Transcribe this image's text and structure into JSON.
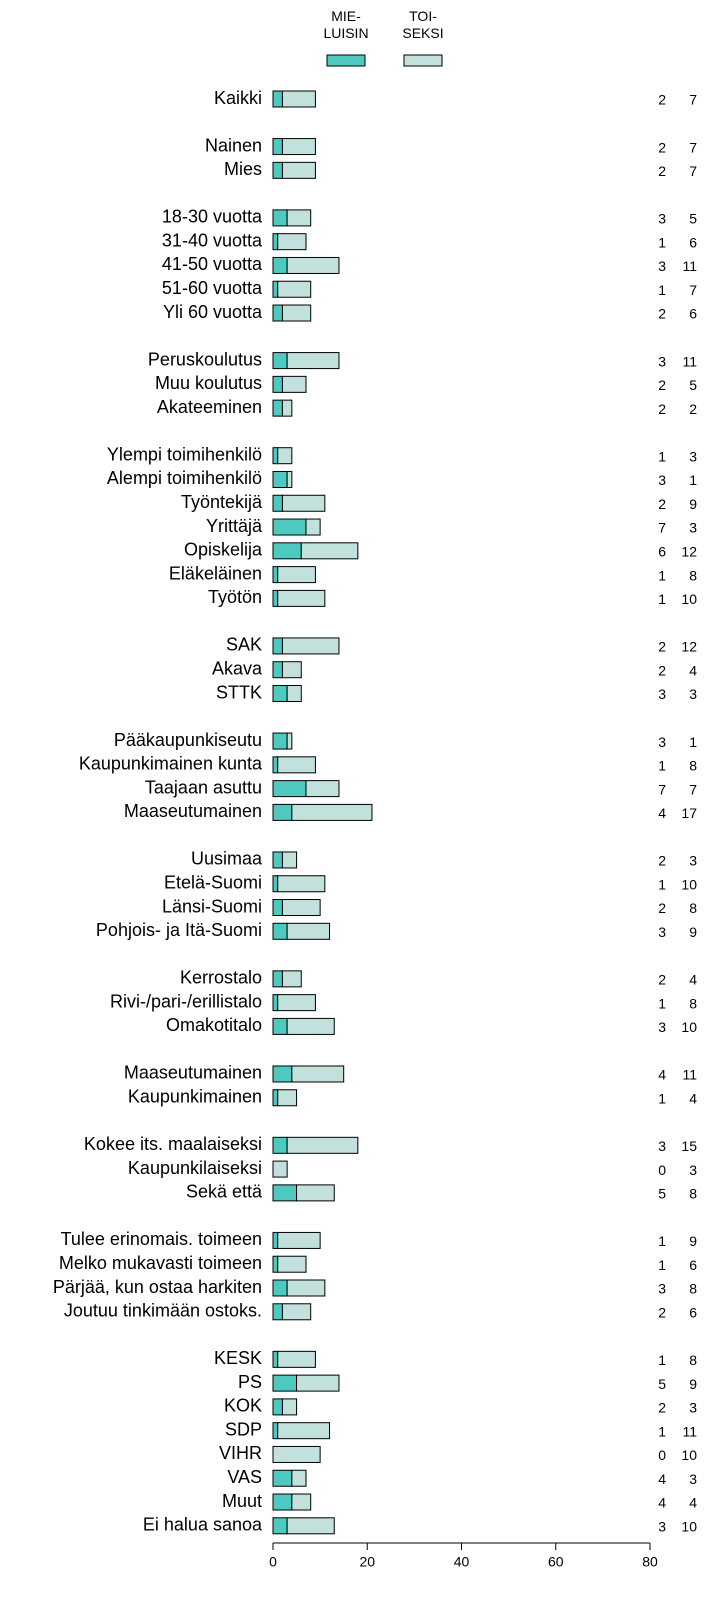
{
  "chart_data": {
    "type": "stacked-bar-horizontal",
    "categories": [
      "Kaikki",
      null,
      "Nainen",
      "Mies",
      null,
      "18-30 vuotta",
      "31-40 vuotta",
      "41-50 vuotta",
      "51-60 vuotta",
      "Yli 60 vuotta",
      null,
      "Peruskoulutus",
      "Muu koulutus",
      "Akateeminen",
      null,
      "Ylempi toimihenkilö",
      "Alempi toimihenkilö",
      "Työntekijä",
      "Yrittäjä",
      "Opiskelija",
      "Eläkeläinen",
      "Työtön",
      null,
      "SAK",
      "Akava",
      "STTK",
      null,
      "Pääkaupunkiseutu",
      "Kaupunkimainen kunta",
      "Taajaan asuttu",
      "Maaseutumainen",
      null,
      "Uusimaa",
      "Etelä-Suomi",
      "Länsi-Suomi",
      "Pohjois- ja Itä-Suomi",
      null,
      "Kerrostalo",
      "Rivi-/pari-/erillistalo",
      "Omakotitalo",
      null,
      "Maaseutumainen",
      "Kaupunkimainen",
      null,
      "Kokee its. maalaiseksi",
      "Kaupunkilaiseksi",
      "Sekä että",
      null,
      "Tulee erinomais. toimeen",
      "Melko mukavasti toimeen",
      "Pärjää, kun ostaa harkiten",
      "Joutuu tinkimään ostoks.",
      null,
      "KESK",
      "PS",
      "KOK",
      "SDP",
      "VIHR",
      "VAS",
      "Muut",
      "Ei halua sanoa"
    ],
    "series": [
      {
        "name": "MIE-\nLUISIN",
        "color": "#4ec9c0",
        "values": [
          2,
          null,
          2,
          2,
          null,
          3,
          1,
          3,
          1,
          2,
          null,
          3,
          2,
          2,
          null,
          1,
          3,
          2,
          7,
          6,
          1,
          1,
          null,
          2,
          2,
          3,
          null,
          3,
          1,
          7,
          4,
          null,
          2,
          1,
          2,
          3,
          null,
          2,
          1,
          3,
          null,
          4,
          1,
          null,
          3,
          0,
          5,
          null,
          1,
          1,
          3,
          2,
          null,
          1,
          5,
          2,
          1,
          0,
          4,
          4,
          3
        ]
      },
      {
        "name": "TOI-\nSEKSI",
        "color": "#c2e0dc",
        "values": [
          7,
          null,
          7,
          7,
          null,
          5,
          6,
          11,
          7,
          6,
          null,
          11,
          5,
          2,
          null,
          3,
          1,
          9,
          3,
          12,
          8,
          10,
          null,
          12,
          4,
          3,
          null,
          1,
          8,
          7,
          17,
          null,
          3,
          10,
          8,
          9,
          null,
          4,
          8,
          10,
          null,
          11,
          4,
          null,
          15,
          3,
          8,
          null,
          9,
          6,
          8,
          6,
          null,
          8,
          9,
          3,
          11,
          10,
          3,
          4,
          10
        ]
      }
    ],
    "xlim": [
      0,
      80
    ],
    "xticks": [
      0,
      20,
      40,
      60,
      80
    ]
  }
}
